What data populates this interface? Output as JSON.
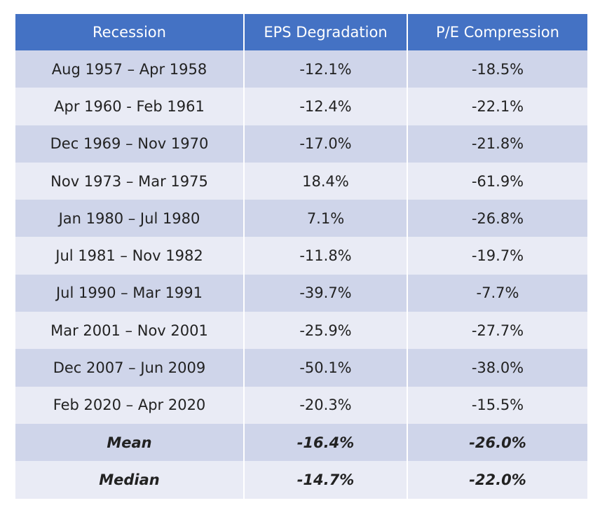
{
  "table": {
    "headers": [
      "Recession",
      "EPS Degradation",
      "P/E Compression"
    ],
    "rows": [
      [
        "Aug 1957 – Apr 1958",
        "-12.1%",
        "-18.5%"
      ],
      [
        "Apr 1960 - Feb 1961",
        "-12.4%",
        "-22.1%"
      ],
      [
        "Dec 1969 – Nov 1970",
        "-17.0%",
        "-21.8%"
      ],
      [
        "Nov 1973 – Mar 1975",
        "18.4%",
        "-61.9%"
      ],
      [
        "Jan 1980 – Jul 1980",
        "7.1%",
        "-26.8%"
      ],
      [
        "Jul 1981 – Nov 1982",
        "-11.8%",
        "-19.7%"
      ],
      [
        "Jul 1990 – Mar 1991",
        "-39.7%",
        "-7.7%"
      ],
      [
        "Mar 2001 – Nov 2001",
        "-25.9%",
        "-27.7%"
      ],
      [
        "Dec 2007 – Jun 2009",
        "-50.1%",
        "-38.0%"
      ],
      [
        "Feb 2020 – Apr 2020",
        "-20.3%",
        "-15.5%"
      ]
    ],
    "summary_rows": [
      [
        "Mean",
        "-16.4%",
        "-26.0%"
      ],
      [
        "Median",
        "-14.7%",
        "-22.0%"
      ]
    ]
  }
}
